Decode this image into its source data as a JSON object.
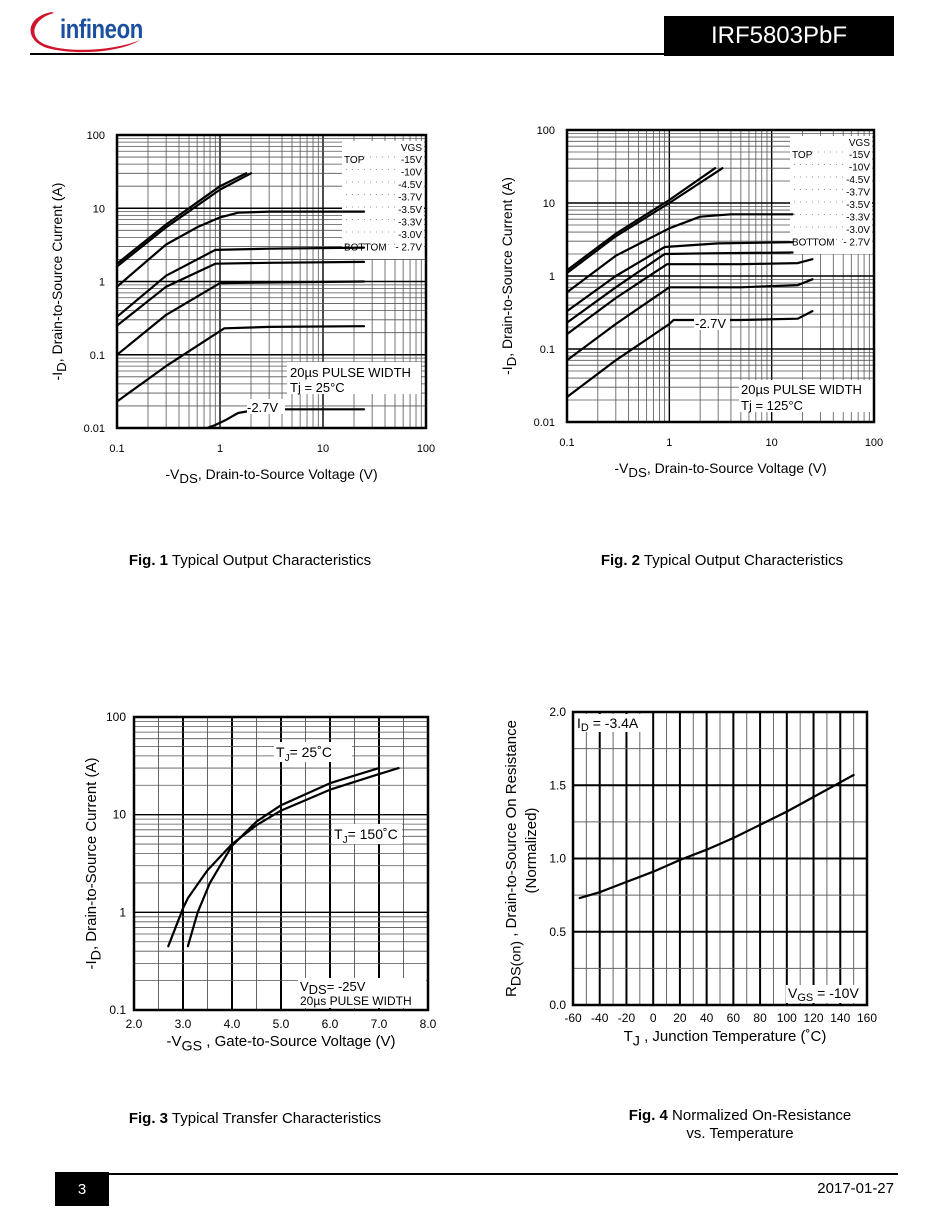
{
  "header": {
    "logo_text": "infineon",
    "part_number": "IRF5803PbF"
  },
  "footer": {
    "page_number": "3",
    "date": "2017-01-27"
  },
  "captions": [
    {
      "fig": "Fig. 1",
      "text": "Typical Output Characteristics",
      "text2": ""
    },
    {
      "fig": "Fig. 2",
      "text": "Typical Output Characteristics",
      "text2": ""
    },
    {
      "fig": "Fig. 3",
      "text": "Typical Transfer Characteristics",
      "text2": ""
    },
    {
      "fig": "Fig. 4",
      "text": "Normalized On-Resistance",
      "text2": "vs. Temperature"
    }
  ],
  "chart_data": [
    {
      "id": "fig1",
      "type": "line",
      "xscale": "log",
      "yscale": "log",
      "xlim": [
        0.1,
        100
      ],
      "ylim": [
        0.01,
        100
      ],
      "xticks": [
        "0.1",
        "1",
        "10",
        "100"
      ],
      "yticks": [
        "0.01",
        "0.1",
        "1",
        "10",
        "100"
      ],
      "xlabel": "-V",
      "xlabel_sub": "DS",
      "xlabel_rest": ", Drain-to-Source Voltage (V)",
      "ylabel": "-I",
      "ylabel_sub": "D",
      "ylabel_rest": ", Drain-to-Source Current (A)",
      "grid": true,
      "legend": {
        "header": "VGS",
        "top_label": "TOP",
        "bottom_label": "BOTTOM",
        "entries": [
          "-15V",
          "-10V",
          "-4.5V",
          "-3.7V",
          "-3.5V",
          "-3.3V",
          "-3.0V",
          "- 2.7V"
        ],
        "placement": "top-right"
      },
      "annotations": [
        "20µs PULSE WIDTH",
        "Tj = 25°C",
        "-2.7V"
      ],
      "series": [
        {
          "name": "-15V",
          "points": [
            [
              0.1,
              1.75
            ],
            [
              0.3,
              6
            ],
            [
              1,
              20
            ],
            [
              1.8,
              30
            ]
          ]
        },
        {
          "name": "-10V",
          "points": [
            [
              0.1,
              1.6
            ],
            [
              0.3,
              5.5
            ],
            [
              1,
              18
            ],
            [
              2.0,
              30
            ]
          ]
        },
        {
          "name": "-4.5V",
          "points": [
            [
              0.1,
              0.85
            ],
            [
              0.3,
              3.2
            ],
            [
              0.6,
              5.5
            ],
            [
              1,
              7.5
            ],
            [
              1.5,
              8.7
            ],
            [
              3,
              9
            ],
            [
              25,
              9
            ]
          ]
        },
        {
          "name": "-3.7V",
          "points": [
            [
              0.1,
              0.33
            ],
            [
              0.3,
              1.2
            ],
            [
              0.9,
              2.7
            ],
            [
              3,
              2.8
            ],
            [
              25,
              2.9
            ]
          ]
        },
        {
          "name": "-3.5V",
          "points": [
            [
              0.1,
              0.25
            ],
            [
              0.3,
              0.85
            ],
            [
              0.9,
              1.75
            ],
            [
              3,
              1.8
            ],
            [
              25,
              1.85
            ]
          ]
        },
        {
          "name": "-3.3V",
          "points": [
            [
              0.1,
              0.1
            ],
            [
              0.3,
              0.35
            ],
            [
              1,
              0.95
            ],
            [
              3,
              0.97
            ],
            [
              25,
              1.0
            ]
          ]
        },
        {
          "name": "-3.0V",
          "points": [
            [
              0.1,
              0.023
            ],
            [
              0.3,
              0.07
            ],
            [
              1.1,
              0.23
            ],
            [
              3,
              0.24
            ],
            [
              25,
              0.245
            ]
          ]
        },
        {
          "name": "-2.7V",
          "points": [
            [
              0.75,
              0.01
            ],
            [
              0.9,
              0.011
            ],
            [
              1.15,
              0.013
            ],
            [
              1.5,
              0.016
            ],
            [
              2.4,
              0.018
            ],
            [
              25,
              0.018
            ]
          ]
        }
      ]
    },
    {
      "id": "fig2",
      "type": "line",
      "xscale": "log",
      "yscale": "log",
      "xlim": [
        0.1,
        100
      ],
      "ylim": [
        0.01,
        100
      ],
      "xticks": [
        "0.1",
        "1",
        "10",
        "100"
      ],
      "yticks": [
        "0.01",
        "0.1",
        "1",
        "10",
        "100"
      ],
      "xlabel": "-V",
      "xlabel_sub": "DS",
      "xlabel_rest": ", Drain-to-Source Voltage (V)",
      "ylabel": "-I",
      "ylabel_sub": "D",
      "ylabel_rest": ", Drain-to-Source Current (A)",
      "grid": true,
      "legend": {
        "header": "VGS",
        "top_label": "TOP",
        "bottom_label": "BOTTOM",
        "entries": [
          "-15V",
          "-10V",
          "-4.5V",
          "-3.7V",
          "-3.5V",
          "-3.3V",
          "-3.0V",
          "- 2.7V"
        ],
        "placement": "top-right"
      },
      "annotations": [
        "20µs PULSE WIDTH",
        "Tj = 125°C",
        "-2.7V"
      ],
      "series": [
        {
          "name": "-15V",
          "points": [
            [
              0.1,
              1.2
            ],
            [
              0.3,
              3.8
            ],
            [
              1,
              11
            ],
            [
              2.8,
              30
            ]
          ]
        },
        {
          "name": "-10V",
          "points": [
            [
              0.1,
              1.1
            ],
            [
              0.3,
              3.5
            ],
            [
              1,
              10
            ],
            [
              3.3,
              30
            ]
          ]
        },
        {
          "name": "-4.5V",
          "points": [
            [
              0.1,
              0.6
            ],
            [
              0.3,
              1.9
            ],
            [
              1,
              4.5
            ],
            [
              2,
              6.5
            ],
            [
              4,
              7
            ],
            [
              16,
              7
            ]
          ]
        },
        {
          "name": "-3.7V",
          "points": [
            [
              0.1,
              0.33
            ],
            [
              0.3,
              1.0
            ],
            [
              0.9,
              2.5
            ],
            [
              3,
              2.8
            ],
            [
              16,
              2.9
            ]
          ]
        },
        {
          "name": "-3.5V",
          "points": [
            [
              0.1,
              0.23
            ],
            [
              0.3,
              0.7
            ],
            [
              0.9,
              2.0
            ],
            [
              3,
              2.05
            ],
            [
              16,
              2.1
            ]
          ]
        },
        {
          "name": "-3.3V",
          "points": [
            [
              0.1,
              0.16
            ],
            [
              0.3,
              0.5
            ],
            [
              0.95,
              1.45
            ],
            [
              5,
              1.45
            ],
            [
              18,
              1.5
            ],
            [
              25,
              1.7
            ]
          ]
        },
        {
          "name": "-3.0V",
          "points": [
            [
              0.1,
              0.07
            ],
            [
              0.3,
              0.22
            ],
            [
              1,
              0.7
            ],
            [
              5,
              0.7
            ],
            [
              18,
              0.75
            ],
            [
              25,
              0.9
            ]
          ]
        },
        {
          "name": "-2.7V",
          "points": [
            [
              0.1,
              0.022
            ],
            [
              0.3,
              0.07
            ],
            [
              1,
              0.22
            ],
            [
              1.1,
              0.25
            ],
            [
              5,
              0.25
            ],
            [
              18,
              0.26
            ],
            [
              25,
              0.33
            ]
          ]
        }
      ]
    },
    {
      "id": "fig3",
      "type": "line",
      "xscale": "linear",
      "yscale": "log",
      "xlim": [
        2.0,
        8.0
      ],
      "ylim": [
        0.1,
        100
      ],
      "xticks": [
        "2.0",
        "3.0",
        "4.0",
        "5.0",
        "6.0",
        "7.0",
        "8.0"
      ],
      "yticks": [
        "0.1",
        "1",
        "10",
        "100"
      ],
      "xlabel": "-V",
      "xlabel_sub": "GS",
      "xlabel_rest": " , Gate-to-Source Voltage (V)",
      "ylabel": "-I",
      "ylabel_sub": "D",
      "ylabel_rest": ",  Drain-to-Source Current (A)",
      "grid": true,
      "annotations": [
        "T_J = 25˚C",
        "T_J = 150˚C",
        "V_DS= -25V",
        "20µs PULSE WIDTH"
      ],
      "annotation_labels": {
        "t25": "= 25˚C",
        "t150": "= 150˚C",
        "vds": "= -25V",
        "pulse": "20µs PULSE WIDTH"
      },
      "series": [
        {
          "name": "TJ = 150°C",
          "points": [
            [
              2.7,
              0.45
            ],
            [
              3.0,
              1.1
            ],
            [
              3.1,
              1.4
            ],
            [
              3.5,
              2.7
            ],
            [
              4.0,
              5.0
            ],
            [
              4.5,
              7.8
            ],
            [
              5.0,
              11
            ],
            [
              6.0,
              18
            ],
            [
              7.0,
              26
            ],
            [
              7.4,
              30
            ]
          ]
        },
        {
          "name": "TJ = 25°C",
          "points": [
            [
              3.1,
              0.45
            ],
            [
              3.3,
              1.0
            ],
            [
              3.55,
              2.0
            ],
            [
              4.0,
              4.8
            ],
            [
              4.5,
              8.5
            ],
            [
              5.0,
              12.5
            ],
            [
              6.0,
              21
            ],
            [
              6.6,
              26
            ],
            [
              7.0,
              30
            ]
          ]
        }
      ]
    },
    {
      "id": "fig4",
      "type": "line",
      "xscale": "linear",
      "yscale": "linear",
      "xlim": [
        -60,
        160
      ],
      "ylim": [
        0.0,
        2.0
      ],
      "xticks": [
        "-60",
        "-40",
        "-20",
        "0",
        "20",
        "40",
        "60",
        "80",
        "100",
        "120",
        "140",
        "160"
      ],
      "yticks": [
        "0.0",
        "0.5",
        "1.0",
        "1.5",
        "2.0"
      ],
      "xlabel": "T",
      "xlabel_sub": "J",
      "xlabel_rest": " , Junction Temperature   (˚C)",
      "ylabel": "R",
      "ylabel_sub": "DS(on)",
      "ylabel_rest": " , Drain-to-Source On Resistance",
      "ylabel2": "(Normalized)",
      "grid": true,
      "annotation_labels": {
        "id": "= -3.4A",
        "vgs": "= -10V"
      },
      "series": [
        {
          "name": "RDS(on)",
          "points": [
            [
              -55,
              0.73
            ],
            [
              -40,
              0.77
            ],
            [
              -20,
              0.84
            ],
            [
              0,
              0.91
            ],
            [
              20,
              0.99
            ],
            [
              40,
              1.06
            ],
            [
              60,
              1.14
            ],
            [
              80,
              1.23
            ],
            [
              100,
              1.32
            ],
            [
              120,
              1.42
            ],
            [
              140,
              1.52
            ],
            [
              150,
              1.57
            ]
          ]
        }
      ]
    }
  ]
}
